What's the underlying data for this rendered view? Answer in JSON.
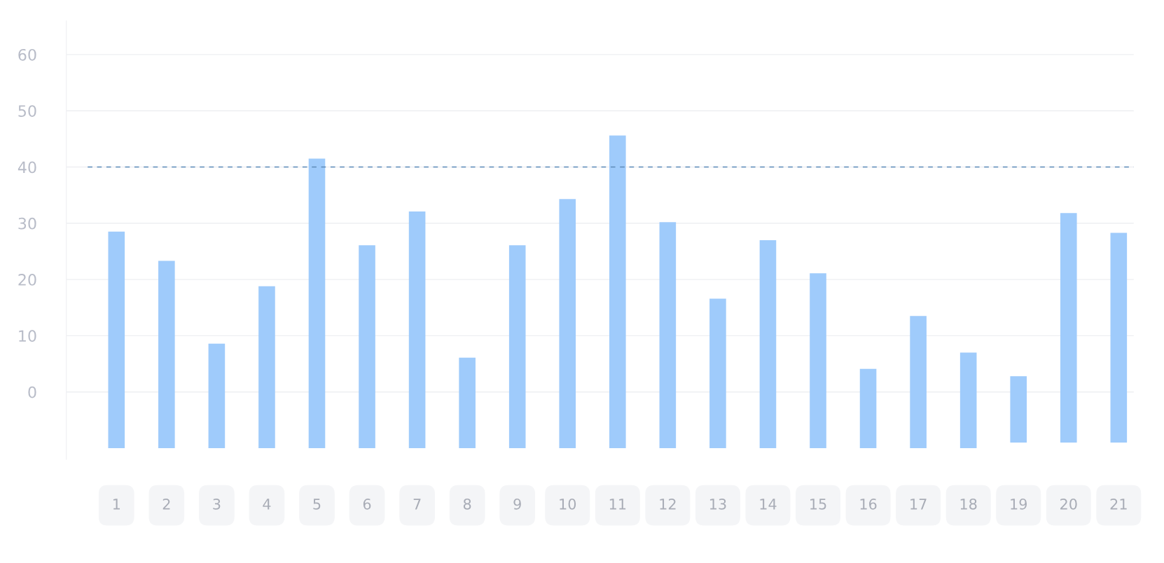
{
  "chart_data": {
    "type": "bar",
    "categories": [
      "1",
      "2",
      "3",
      "4",
      "5",
      "6",
      "7",
      "8",
      "9",
      "10",
      "11",
      "12",
      "13",
      "14",
      "15",
      "16",
      "17",
      "18",
      "19",
      "20",
      "21"
    ],
    "base": [
      -10,
      -10,
      -10,
      -10,
      -10,
      -10,
      -10,
      -10,
      -10,
      -10,
      -10,
      -10,
      -10,
      -10,
      -10,
      -10,
      -10,
      -10,
      -9,
      -9,
      -9
    ],
    "values": [
      38.5,
      33.3,
      18.6,
      28.8,
      51.5,
      36.1,
      42.1,
      16.1,
      36.1,
      44.3,
      55.6,
      40.2,
      26.6,
      37.0,
      31.1,
      14.1,
      23.5,
      17.0,
      11.8,
      40.8,
      37.3
    ],
    "color": "#9fcbfb",
    "ylim": [
      -12,
      66
    ],
    "yticks": [
      0,
      10,
      20,
      30,
      40,
      50,
      60
    ],
    "grid": "y",
    "ref_lines": [
      {
        "axis": "y",
        "value": 40,
        "color": "#5b8ab8",
        "line_style": "dashed"
      }
    ]
  }
}
